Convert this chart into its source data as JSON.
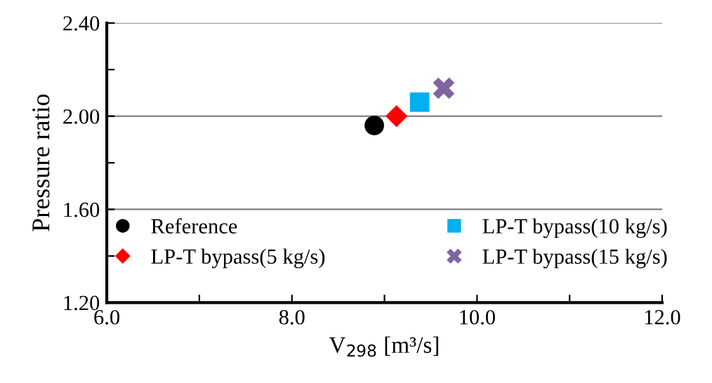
{
  "chart_data": {
    "type": "scatter",
    "xlabel": "V$_{298}$ [m³/s]",
    "ylabel": "Pressure ratio",
    "xlim": [
      6.0,
      12.0
    ],
    "xticks": [
      {
        "value": 6,
        "label": "6.0"
      },
      {
        "value": 7,
        "label": null
      },
      {
        "value": 8,
        "label": "8.0"
      },
      {
        "value": 9,
        "label": null
      },
      {
        "value": 10,
        "label": "10.0"
      },
      {
        "value": 11,
        "label": null
      },
      {
        "value": 12,
        "label": "12.0"
      }
    ],
    "ylim": [
      1.2,
      2.4
    ],
    "yticks": [
      {
        "value": 1.2,
        "label": "1.20"
      },
      {
        "value": 1.4,
        "label": null
      },
      {
        "value": 1.6,
        "label": "1.60"
      },
      {
        "value": 1.8,
        "label": null
      },
      {
        "value": 2.0,
        "label": "2.00"
      },
      {
        "value": 2.2,
        "label": null
      },
      {
        "value": 2.4,
        "label": "2.40"
      }
    ],
    "grid": "y",
    "legend": "bottom",
    "series": [
      {
        "name": "Reference",
        "color": "#000000",
        "marker": "circle",
        "x": [
          8.89
        ],
        "values": [
          1.96
        ]
      },
      {
        "name": "LP-T bypass(5 kg/s)",
        "color": "#ff0000",
        "marker": "diamond",
        "x": [
          9.13
        ],
        "values": [
          2.0
        ]
      },
      {
        "name": "LP-T bypass(10 kg/s)",
        "color": "#00b0f0",
        "marker": "square",
        "x": [
          9.38
        ],
        "values": [
          2.06
        ]
      },
      {
        "name": "LP-T bypass(15 kg/s)",
        "color": "#8064a2",
        "marker": "cross",
        "x": [
          9.64
        ],
        "values": [
          2.12
        ]
      }
    ]
  }
}
